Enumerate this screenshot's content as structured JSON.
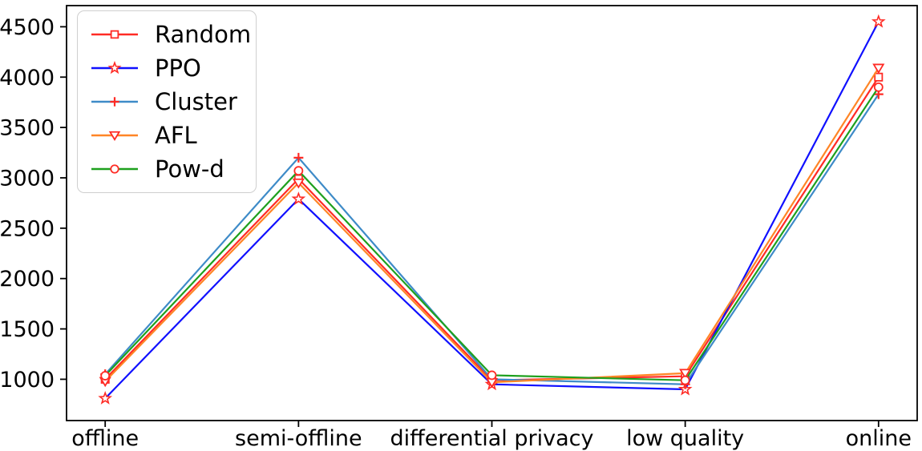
{
  "chart_data": {
    "type": "line",
    "title": "",
    "xlabel": "",
    "ylabel": "",
    "categories": [
      "offline",
      "semi-offline",
      "differential privacy",
      "low quality",
      "online"
    ],
    "series": [
      {
        "name": "Random",
        "color": "#ff2b25",
        "marker": "square",
        "values": [
          1000,
          2990,
          990,
          1030,
          4000
        ]
      },
      {
        "name": "PPO",
        "color": "#1010ff",
        "marker": "star",
        "values": [
          810,
          2790,
          950,
          900,
          4550
        ]
      },
      {
        "name": "Cluster",
        "color": "#3e8bc8",
        "marker": "plus",
        "values": [
          1050,
          3200,
          1000,
          950,
          3830
        ]
      },
      {
        "name": "AFL",
        "color": "#ff8526",
        "marker": "triangle-down",
        "values": [
          980,
          2950,
          970,
          1060,
          4090
        ]
      },
      {
        "name": "Pow-d",
        "color": "#1ea01e",
        "marker": "circle",
        "values": [
          1035,
          3070,
          1040,
          990,
          3900
        ]
      }
    ],
    "marker_color": "#ff2b25",
    "yticks": [
      1000,
      1500,
      2000,
      2500,
      3000,
      3500,
      4000,
      4500
    ],
    "ylim": [
      590,
      4710
    ],
    "grid": false,
    "legend_position": "upper left",
    "axis_color": "#000000",
    "background_color": "#ffffff"
  }
}
